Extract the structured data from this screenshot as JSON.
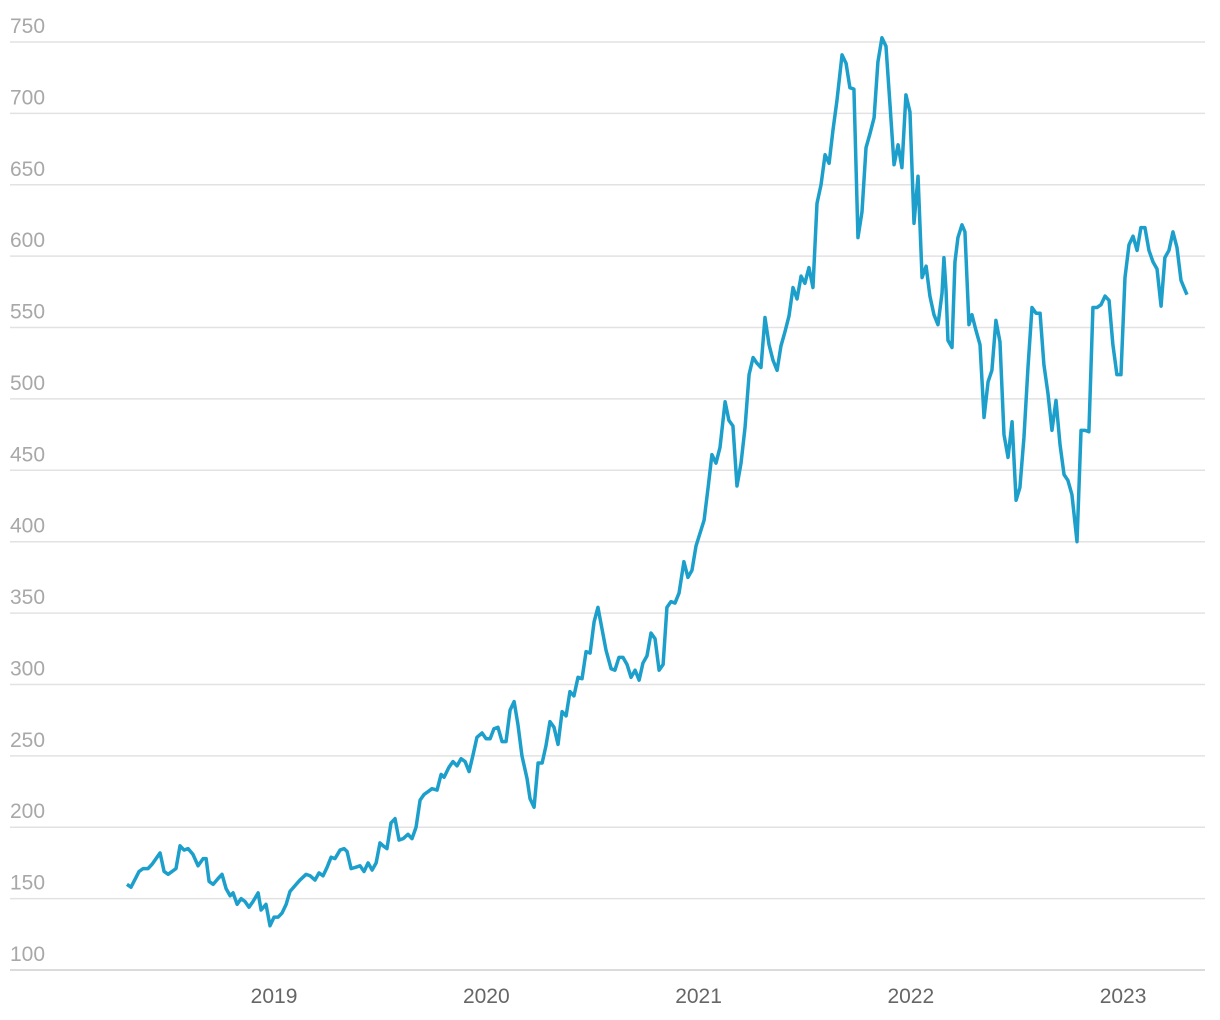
{
  "chart_data": {
    "type": "line",
    "color": "#1c9fcb",
    "grid": true,
    "xlim": [
      2017.756,
      2023.386
    ],
    "xticks": [
      2019,
      2020,
      2021,
      2022,
      2023
    ],
    "ylim": [
      100,
      750
    ],
    "yticks": [
      100,
      150,
      200,
      250,
      300,
      350,
      400,
      450,
      500,
      550,
      600,
      650,
      700,
      750
    ],
    "x": [
      2018.307,
      2018.326,
      2018.364,
      2018.383,
      2018.406,
      2018.425,
      2018.463,
      2018.482,
      2018.501,
      2018.538,
      2018.557,
      2018.576,
      2018.595,
      2018.618,
      2018.642,
      2018.666,
      2018.68,
      2018.694,
      2018.713,
      2018.736,
      2018.755,
      2018.774,
      2018.793,
      2018.807,
      2018.826,
      2018.845,
      2018.863,
      2018.882,
      2018.901,
      2018.925,
      2018.939,
      2018.962,
      2018.981,
      2019.0,
      2019.019,
      2019.038,
      2019.057,
      2019.075,
      2019.104,
      2019.122,
      2019.151,
      2019.17,
      2019.193,
      2019.212,
      2019.231,
      2019.25,
      2019.269,
      2019.287,
      2019.311,
      2019.33,
      2019.344,
      2019.363,
      2019.386,
      2019.405,
      2019.424,
      2019.443,
      2019.462,
      2019.481,
      2019.499,
      2019.514,
      2019.532,
      2019.551,
      2019.57,
      2019.589,
      2019.608,
      2019.631,
      2019.65,
      2019.669,
      2019.688,
      2019.707,
      2019.726,
      2019.744,
      2019.768,
      2019.787,
      2019.801,
      2019.824,
      2019.843,
      2019.862,
      2019.881,
      2019.9,
      2019.919,
      2019.938,
      2019.956,
      2019.98,
      2019.999,
      2020.018,
      2020.036,
      2020.055,
      2020.074,
      2020.093,
      2020.112,
      2020.131,
      2020.149,
      2020.168,
      2020.192,
      2020.206,
      2020.225,
      2020.244,
      2020.263,
      2020.281,
      2020.3,
      2020.319,
      2020.338,
      2020.357,
      2020.376,
      2020.394,
      2020.413,
      2020.432,
      2020.451,
      2020.47,
      2020.489,
      2020.508,
      2020.526,
      2020.545,
      2020.564,
      2020.588,
      2020.606,
      2020.625,
      2020.644,
      2020.663,
      2020.682,
      2020.701,
      2020.72,
      2020.738,
      2020.757,
      2020.776,
      2020.795,
      2020.814,
      2020.833,
      2020.851,
      2020.87,
      2020.889,
      2020.908,
      2020.931,
      2020.95,
      2020.969,
      2020.988,
      2021.007,
      2021.026,
      2021.045,
      2021.063,
      2021.082,
      2021.101,
      2021.125,
      2021.143,
      2021.162,
      2021.181,
      2021.2,
      2021.219,
      2021.238,
      2021.257,
      2021.275,
      2021.294,
      2021.313,
      2021.332,
      2021.351,
      2021.37,
      2021.388,
      2021.407,
      2021.426,
      2021.445,
      2021.464,
      2021.483,
      2021.501,
      2021.52,
      2021.539,
      2021.558,
      2021.577,
      2021.596,
      2021.615,
      2021.633,
      2021.652,
      2021.676,
      2021.695,
      2021.713,
      2021.732,
      2021.751,
      2021.77,
      2021.789,
      2021.808,
      2021.827,
      2021.845,
      2021.864,
      2021.883,
      2021.902,
      2021.921,
      2021.94,
      2021.958,
      2021.977,
      2021.996,
      2022.015,
      2022.034,
      2022.053,
      2022.072,
      2022.09,
      2022.109,
      2022.128,
      2022.147,
      2022.156,
      2022.166,
      2022.175,
      2022.194,
      2022.208,
      2022.222,
      2022.241,
      2022.255,
      2022.274,
      2022.288,
      2022.307,
      2022.326,
      2022.345,
      2022.364,
      2022.382,
      2022.401,
      2022.42,
      2022.439,
      2022.458,
      2022.477,
      2022.496,
      2022.514,
      2022.533,
      2022.552,
      2022.571,
      2022.59,
      2022.609,
      2022.627,
      2022.646,
      2022.665,
      2022.684,
      2022.703,
      2022.722,
      2022.74,
      2022.759,
      2022.783,
      2022.802,
      2022.821,
      2022.839,
      2022.858,
      2022.877,
      2022.896,
      2022.915,
      2022.934,
      2022.952,
      2022.971,
      2022.99,
      2023.009,
      2023.028,
      2023.047,
      2023.066,
      2023.084,
      2023.103,
      2023.122,
      2023.141,
      2023.16,
      2023.179,
      2023.197,
      2023.216,
      2023.235,
      2023.254,
      2023.273,
      2023.301
    ],
    "values": [
      160,
      158,
      169,
      171,
      171,
      174,
      182,
      169,
      167,
      171,
      187,
      184,
      185,
      181,
      173,
      178,
      178,
      162,
      160,
      164,
      167,
      157,
      152,
      154,
      146,
      150,
      148,
      144,
      148,
      154,
      142,
      146,
      131,
      137,
      137,
      140,
      146,
      155,
      160,
      163,
      167,
      166,
      163,
      168,
      166,
      172,
      179,
      178,
      184,
      185,
      183,
      171,
      172,
      173,
      169,
      175,
      170,
      175,
      189,
      187,
      185,
      203,
      206,
      191,
      192,
      195,
      192,
      200,
      219,
      223,
      225,
      227,
      226,
      237,
      235,
      242,
      246,
      243,
      248,
      246,
      239,
      251,
      263,
      266,
      262,
      262,
      269,
      270,
      260,
      260,
      282,
      288,
      272,
      250,
      234,
      220,
      214,
      245,
      245,
      257,
      274,
      270,
      258,
      281,
      278,
      295,
      292,
      305,
      304,
      323,
      322,
      344,
      354,
      339,
      324,
      311,
      310,
      319,
      319,
      314,
      305,
      310,
      303,
      315,
      320,
      336,
      332,
      310,
      314,
      354,
      358,
      357,
      364,
      386,
      375,
      380,
      397,
      406,
      415,
      438,
      461,
      455,
      466,
      498,
      485,
      481,
      439,
      455,
      480,
      517,
      529,
      525,
      522,
      557,
      538,
      527,
      520,
      537,
      547,
      558,
      578,
      570,
      586,
      581,
      592,
      578,
      637,
      650,
      671,
      665,
      688,
      709,
      741,
      735,
      718,
      717,
      613,
      631,
      676,
      686,
      697,
      736,
      753,
      747,
      706,
      664,
      678,
      662,
      713,
      701,
      623,
      656,
      585,
      593,
      572,
      559,
      552,
      574,
      599,
      576,
      541,
      536,
      596,
      613,
      622,
      617,
      552,
      559,
      548,
      538,
      487,
      512,
      520,
      555,
      540,
      475,
      459,
      484,
      429,
      438,
      473,
      522,
      564,
      560,
      560,
      524,
      504,
      478,
      499,
      468,
      447,
      443,
      433,
      400,
      478,
      478,
      477,
      564,
      564,
      566,
      572,
      569,
      538,
      517,
      517,
      585,
      608,
      614,
      604,
      620,
      620,
      604,
      596,
      591,
      565,
      599,
      604,
      617,
      606,
      583,
      573
    ]
  }
}
